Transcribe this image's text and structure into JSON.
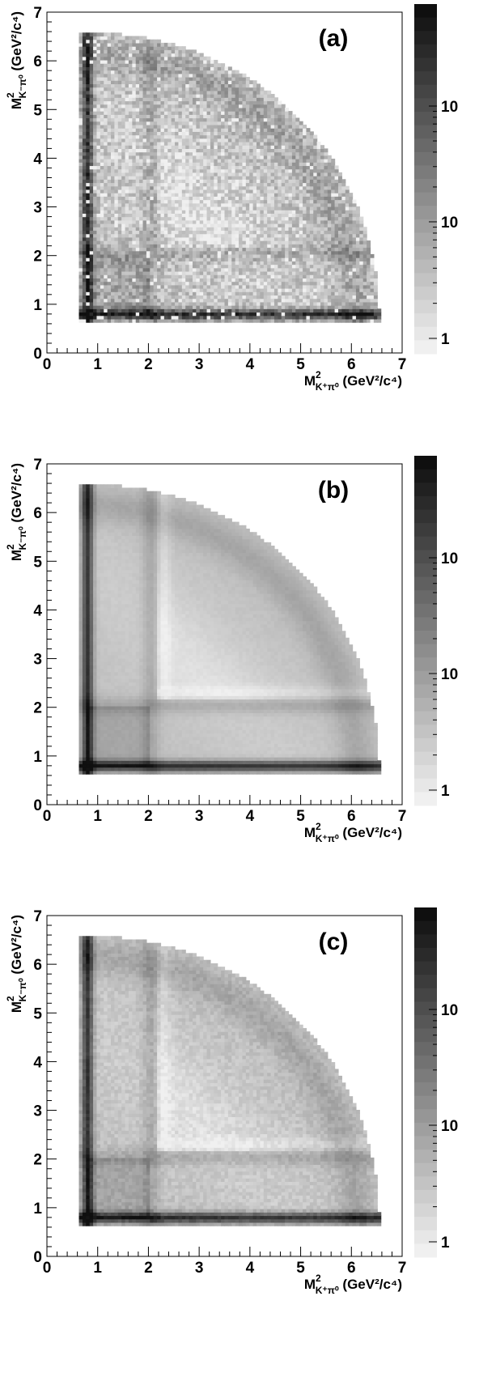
{
  "figure": {
    "axis_title_main": "M",
    "axis_title_sup": "2",
    "x_axis_sub": "K⁺π⁰",
    "y_axis_sub": "K⁻π⁰",
    "axis_unit": " (GeV²/c⁴)"
  },
  "chart_data": [
    {
      "type": "heatmap",
      "panel": "(a)",
      "title": "",
      "xlabel": "M²_{K⁺π⁰} (GeV²/c⁴)",
      "ylabel": "M²_{K⁻π⁰} (GeV²/c⁴)",
      "xlim": [
        0,
        7
      ],
      "ylim": [
        0,
        7
      ],
      "xticks": [
        "0",
        "1",
        "2",
        "3",
        "4",
        "5",
        "6",
        "7"
      ],
      "yticks": [
        "0",
        "1",
        "2",
        "3",
        "4",
        "5",
        "6",
        "7"
      ],
      "colorbar": {
        "scale": "log",
        "labels": [
          "10",
          "10",
          "1"
        ],
        "colormap": "grayscale"
      },
      "texture": "noisy",
      "grid": false
    },
    {
      "type": "heatmap",
      "panel": "(b)",
      "title": "",
      "xlabel": "M²_{K⁺π⁰} (GeV²/c⁴)",
      "ylabel": "M²_{K⁻π⁰} (GeV²/c⁴)",
      "xlim": [
        0,
        7
      ],
      "ylim": [
        0,
        7
      ],
      "xticks": [
        "0",
        "1",
        "2",
        "3",
        "4",
        "5",
        "6",
        "7"
      ],
      "yticks": [
        "0",
        "1",
        "2",
        "3",
        "4",
        "5",
        "6",
        "7"
      ],
      "colorbar": {
        "scale": "log",
        "labels": [
          "10",
          "10",
          "1"
        ],
        "colormap": "grayscale"
      },
      "texture": "smooth",
      "grid": false
    },
    {
      "type": "heatmap",
      "panel": "(c)",
      "title": "",
      "xlabel": "M²_{K⁺π⁰} (GeV²/c⁴)",
      "ylabel": "M²_{K⁻π⁰} (GeV²/c⁴)",
      "xlim": [
        0,
        7
      ],
      "ylim": [
        0,
        7
      ],
      "xticks": [
        "0",
        "1",
        "2",
        "3",
        "4",
        "5",
        "6",
        "7"
      ],
      "yticks": [
        "0",
        "1",
        "2",
        "3",
        "4",
        "5",
        "6",
        "7"
      ],
      "colorbar": {
        "scale": "log",
        "labels": [
          "10",
          "10",
          "1"
        ],
        "colormap": "grayscale"
      },
      "texture": "slightly-noisy",
      "grid": false
    }
  ]
}
